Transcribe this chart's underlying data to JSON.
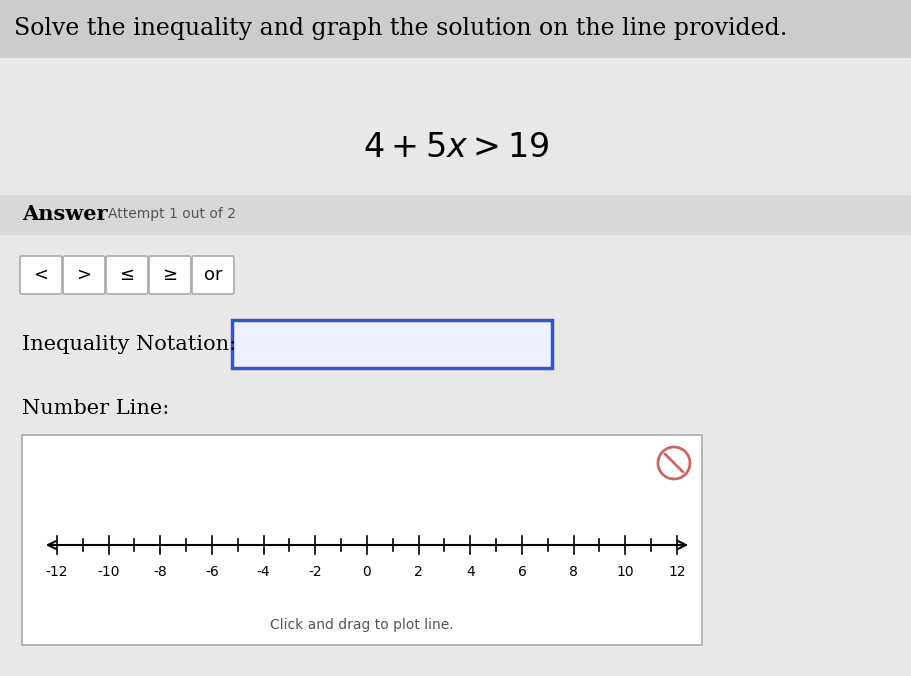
{
  "title": "Solve the inequality and graph the solution on the line provided.",
  "equation": "4 + 5x > 19",
  "buttons": [
    "<",
    ">",
    "≤",
    "≥",
    "or"
  ],
  "inequality_label": "Inequality Notation:",
  "numberline_label": "Number Line:",
  "click_drag_label": "Click and drag to plot line.",
  "bg_top_color": "#d0d0d0",
  "bg_bottom_color": "#e0e0e0",
  "panel_color": "#e8e8e8",
  "box_outline_color": "#3355cc",
  "number_line_min": -12,
  "number_line_max": 12,
  "fig_width": 9.12,
  "fig_height": 6.76,
  "dpi": 100
}
